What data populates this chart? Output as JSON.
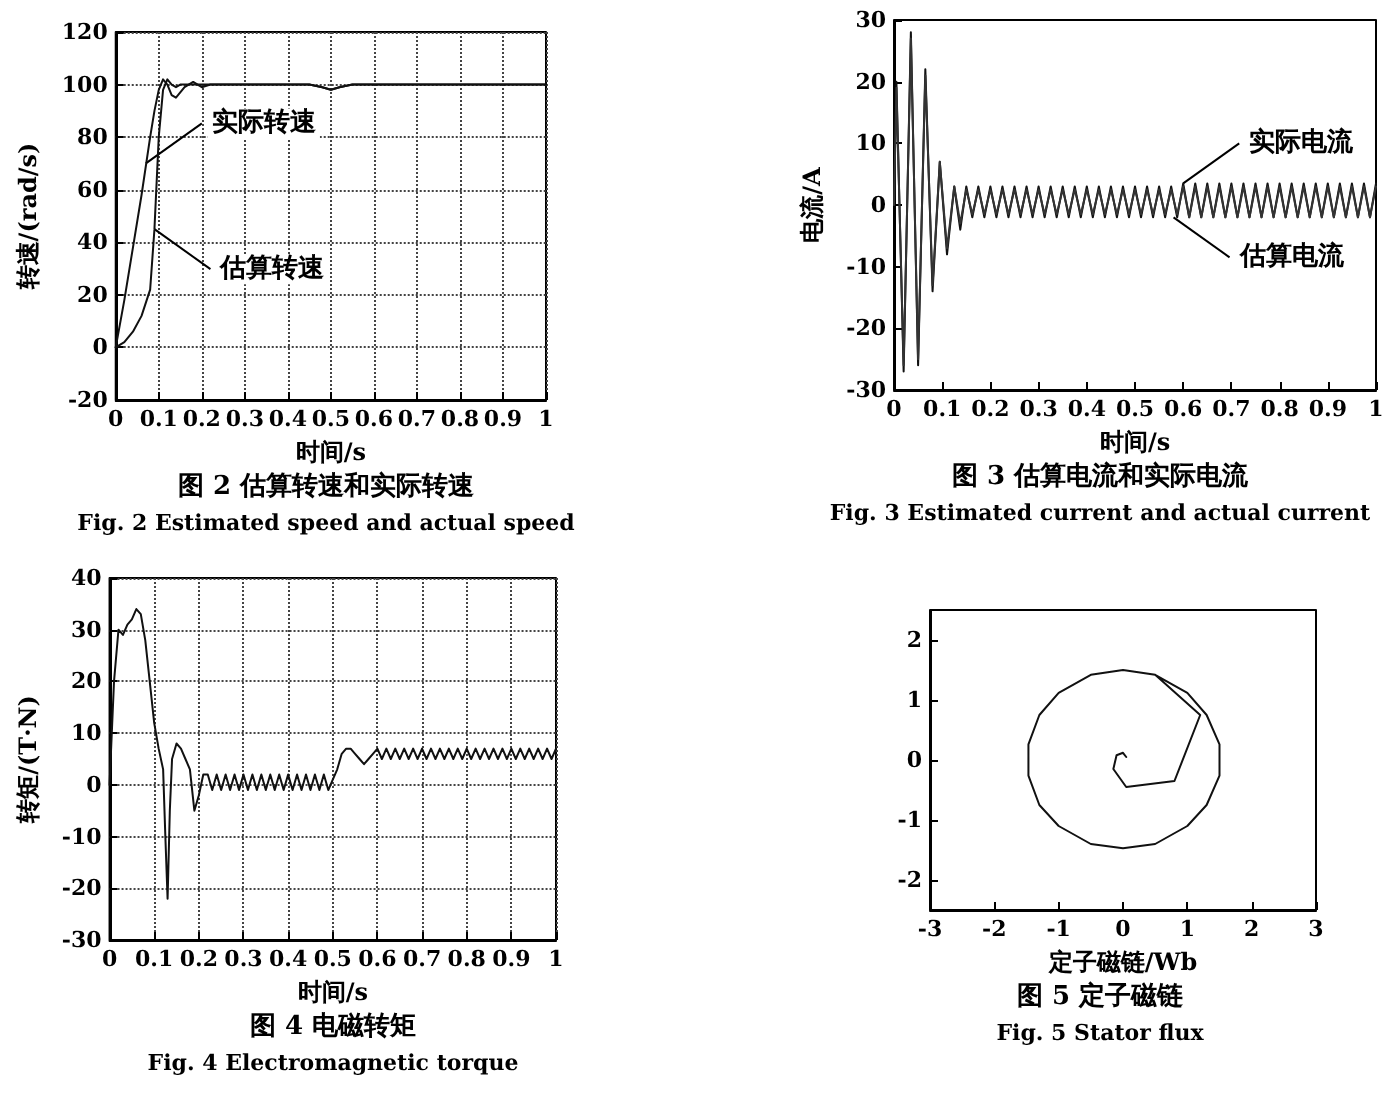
{
  "chart_data": [
    {
      "type": "line",
      "title": "图 2 估算转速和实际转速",
      "subtitle": "Fig. 2 Estimated speed and actual speed",
      "xlabel": "时间/s",
      "ylabel": "转速/(rad/s)",
      "xlim": [
        0,
        1
      ],
      "xticks": [
        0,
        0.1,
        0.2,
        0.3,
        0.4,
        0.5,
        0.6,
        0.7,
        0.8,
        0.9,
        1
      ],
      "ylim": [
        -20,
        120
      ],
      "yticks": [
        -20,
        0,
        20,
        40,
        60,
        80,
        100,
        120
      ],
      "grid": true,
      "marker": "none",
      "x": [
        0,
        0.02,
        0.04,
        0.06,
        0.08,
        0.09,
        0.1,
        0.11,
        0.12,
        0.13,
        0.14,
        0.15,
        0.16,
        0.18,
        0.2,
        0.22,
        0.3,
        0.4,
        0.45,
        0.48,
        0.5,
        0.52,
        0.55,
        0.6,
        0.7,
        0.8,
        0.9,
        1
      ],
      "series": [
        {
          "color": "#111111",
          "values": [
            0,
            18,
            38,
            58,
            80,
            90,
            98,
            102,
            100,
            96,
            95,
            97,
            99,
            101,
            99,
            100,
            100,
            100,
            100,
            99,
            98,
            99,
            100,
            100,
            100,
            100,
            100,
            100
          ]
        },
        {
          "color": "#111111",
          "values": [
            0,
            2,
            6,
            12,
            22,
            45,
            80,
            98,
            102,
            100,
            99,
            100,
            100,
            100,
            100,
            100,
            100,
            100,
            100,
            99,
            98,
            99,
            100,
            100,
            100,
            100,
            100,
            100
          ]
        }
      ],
      "annotations": [
        {
          "text": "实际转速",
          "x": 0.07,
          "y": 70
        },
        {
          "text": "估算转速",
          "x": 0.09,
          "y": 45
        }
      ]
    },
    {
      "type": "line",
      "title": "图 3 估算电流和实际电流",
      "subtitle": "Fig. 3 Estimated current and actual current",
      "xlabel": "时间/s",
      "ylabel": "电流/A",
      "xlim": [
        0,
        1
      ],
      "xticks": [
        0,
        0.1,
        0.2,
        0.3,
        0.4,
        0.5,
        0.6,
        0.7,
        0.8,
        0.9,
        1
      ],
      "ylim": [
        -30,
        30
      ],
      "yticks": [
        -30,
        -20,
        -10,
        0,
        10,
        20,
        30
      ],
      "marker": "none",
      "x": [
        0,
        0.005,
        0.02,
        0.035,
        0.05,
        0.065,
        0.08,
        0.095,
        0.11,
        0.125,
        0.1375,
        0.15,
        0.1625,
        0.175,
        0.1875,
        0.2,
        0.2125,
        0.225,
        0.2375,
        0.25,
        0.2625,
        0.275,
        0.2875,
        0.3,
        0.3125,
        0.325,
        0.3375,
        0.35,
        0.3625,
        0.375,
        0.3875,
        0.4,
        0.4125,
        0.425,
        0.4375,
        0.45,
        0.4625,
        0.475,
        0.4875,
        0.5,
        0.5125,
        0.525,
        0.5375,
        0.55,
        0.5625,
        0.575,
        0.5875,
        0.6,
        0.6125,
        0.625,
        0.6375,
        0.65,
        0.6625,
        0.675,
        0.6875,
        0.7,
        0.7125,
        0.725,
        0.7375,
        0.75,
        0.7625,
        0.775,
        0.7875,
        0.8,
        0.8125,
        0.825,
        0.8375,
        0.85,
        0.8625,
        0.875,
        0.8875,
        0.9,
        0.9125,
        0.925,
        0.9375,
        0.95,
        0.9625,
        0.975,
        0.9875,
        1
      ],
      "series": [
        {
          "color": "#111111",
          "values": [
            0,
            20,
            -27,
            28,
            -26,
            22,
            -14,
            7,
            -8,
            3,
            -4,
            3,
            -2,
            3,
            -2,
            3,
            -2,
            3,
            -2,
            3,
            -2,
            3,
            -2,
            3,
            -2,
            3,
            -2,
            3,
            -2,
            3,
            -2,
            3,
            -2,
            3,
            -2,
            3,
            -2,
            3,
            -2,
            3,
            -2,
            3,
            -2,
            3,
            -2,
            3,
            -2,
            3.5,
            -2,
            3.5,
            -2,
            3.5,
            -2,
            3.5,
            -2,
            3.5,
            -2,
            3.5,
            -2,
            3.5,
            -2,
            3.5,
            -2,
            3.5,
            -2,
            3.5,
            -2,
            3.5,
            -2,
            3.5,
            -2,
            3.5,
            -2,
            3.5,
            -2,
            3.5,
            -2,
            3.5,
            -2,
            3.5
          ]
        },
        {
          "color": "#333333",
          "values": [
            0,
            19,
            -26,
            27,
            -25,
            21,
            -13,
            7,
            -7,
            3,
            -3,
            2.5,
            -1.5,
            2.5,
            -1.5,
            2.5,
            -1.5,
            2.5,
            -1.5,
            2.5,
            -1.5,
            2.5,
            -1.5,
            2.5,
            -1.5,
            2.5,
            -1.5,
            2.5,
            -1.5,
            2.5,
            -1.5,
            2.5,
            -1.5,
            2.5,
            -1.5,
            2.5,
            -1.5,
            2.5,
            -1.5,
            2.5,
            -1.5,
            2.5,
            -1.5,
            2.5,
            -1.5,
            2.5,
            -1.5,
            3,
            -2,
            3,
            -2,
            3,
            -2,
            3,
            -2,
            3,
            -2,
            3,
            -2,
            3,
            -2,
            3,
            -2,
            3,
            -2,
            3,
            -2,
            3,
            -2,
            3,
            -2,
            3,
            -2,
            3,
            -2,
            3,
            -2,
            3,
            -2,
            3
          ]
        }
      ],
      "annotations": [
        {
          "text": "实际电流",
          "x": 0.6,
          "y": 3.5
        },
        {
          "text": "估算电流",
          "x": 0.58,
          "y": -2
        }
      ]
    },
    {
      "type": "line",
      "title": "图 4 电磁转矩",
      "subtitle": "Fig. 4 Electromagnetic torque",
      "xlabel": "时间/s",
      "ylabel": "转矩/(T·N)",
      "xlim": [
        0,
        1
      ],
      "xticks": [
        0,
        0.1,
        0.2,
        0.3,
        0.4,
        0.5,
        0.6,
        0.7,
        0.8,
        0.9,
        1
      ],
      "ylim": [
        -30,
        40
      ],
      "yticks": [
        -30,
        -20,
        -10,
        0,
        10,
        20,
        30,
        40
      ],
      "grid": true,
      "marker": "none",
      "x": [
        0,
        0.01,
        0.02,
        0.03,
        0.04,
        0.05,
        0.06,
        0.07,
        0.08,
        0.09,
        0.1,
        0.11,
        0.12,
        0.125,
        0.13,
        0.135,
        0.14,
        0.15,
        0.16,
        0.17,
        0.18,
        0.19,
        0.2,
        0.21,
        0.22,
        0.23,
        0.24,
        0.25,
        0.26,
        0.27,
        0.28,
        0.29,
        0.3,
        0.31,
        0.32,
        0.33,
        0.34,
        0.35,
        0.36,
        0.37,
        0.38,
        0.39,
        0.4,
        0.41,
        0.42,
        0.43,
        0.44,
        0.45,
        0.46,
        0.47,
        0.48,
        0.49,
        0.5,
        0.51,
        0.52,
        0.53,
        0.54,
        0.55,
        0.56,
        0.57,
        0.58,
        0.59,
        0.6,
        0.61,
        0.62,
        0.63,
        0.64,
        0.65,
        0.66,
        0.67,
        0.68,
        0.69,
        0.7,
        0.71,
        0.72,
        0.73,
        0.74,
        0.75,
        0.76,
        0.77,
        0.78,
        0.79,
        0.8,
        0.81,
        0.82,
        0.83,
        0.84,
        0.85,
        0.86,
        0.87,
        0.88,
        0.89,
        0.9,
        0.91,
        0.92,
        0.93,
        0.94,
        0.95,
        0.96,
        0.97,
        0.98,
        0.99,
        1
      ],
      "series": [
        {
          "color": "#111111",
          "values": [
            0,
            20,
            30,
            29,
            31,
            32,
            34,
            33,
            28,
            20,
            12,
            7,
            3,
            -10,
            -22,
            -5,
            5,
            8,
            7,
            5,
            3,
            -5,
            -2,
            2,
            2,
            -1,
            2,
            -1,
            2,
            -1,
            2,
            -1,
            2,
            -1,
            2,
            -1,
            2,
            -1,
            2,
            -1,
            2,
            -1,
            2,
            -1,
            2,
            -1,
            2,
            -1,
            2,
            -1,
            2,
            -1,
            1,
            3,
            6,
            7,
            7,
            6,
            5,
            4,
            5,
            6,
            7,
            5,
            7,
            5,
            7,
            5,
            7,
            5,
            7,
            5,
            7,
            5,
            7,
            5,
            7,
            5,
            7,
            5,
            7,
            5,
            7,
            5,
            7,
            5,
            7,
            5,
            7,
            5,
            7,
            5,
            7,
            5,
            7,
            5,
            7,
            5,
            7,
            5,
            7,
            5,
            7
          ]
        }
      ]
    },
    {
      "type": "line",
      "title": "图 5 定子磁链",
      "subtitle": "Fig. 5 Stator flux",
      "xlabel": "定子磁链/Wb",
      "xlim": [
        -3,
        3
      ],
      "xticks": [
        -3,
        -2,
        -1,
        0,
        1,
        2,
        3
      ],
      "ylim": [
        -2.5,
        2.5
      ],
      "yticks": [
        -2,
        -1,
        0,
        1,
        2
      ],
      "marker": "none",
      "x": [
        0.05,
        0,
        -0.1,
        -0.15,
        0.05,
        0.8,
        1.2,
        0.5,
        0,
        -0.5,
        -1,
        -1.3,
        -1.47,
        -1.47,
        -1.3,
        -1,
        -0.5,
        0,
        0.5,
        1,
        1.3,
        1.5,
        1.5,
        1.3,
        1,
        0.5,
        0
      ],
      "series": [
        {
          "color": "#111111",
          "values": [
            0.05,
            0.12,
            0.08,
            -0.15,
            -0.45,
            -0.35,
            0.75,
            1.42,
            1.5,
            1.42,
            1.12,
            0.75,
            0.26,
            -0.26,
            -0.75,
            -1.1,
            -1.4,
            -1.47,
            -1.4,
            -1.1,
            -0.75,
            -0.26,
            0.26,
            0.75,
            1.12,
            1.42,
            1.5
          ]
        }
      ]
    }
  ]
}
